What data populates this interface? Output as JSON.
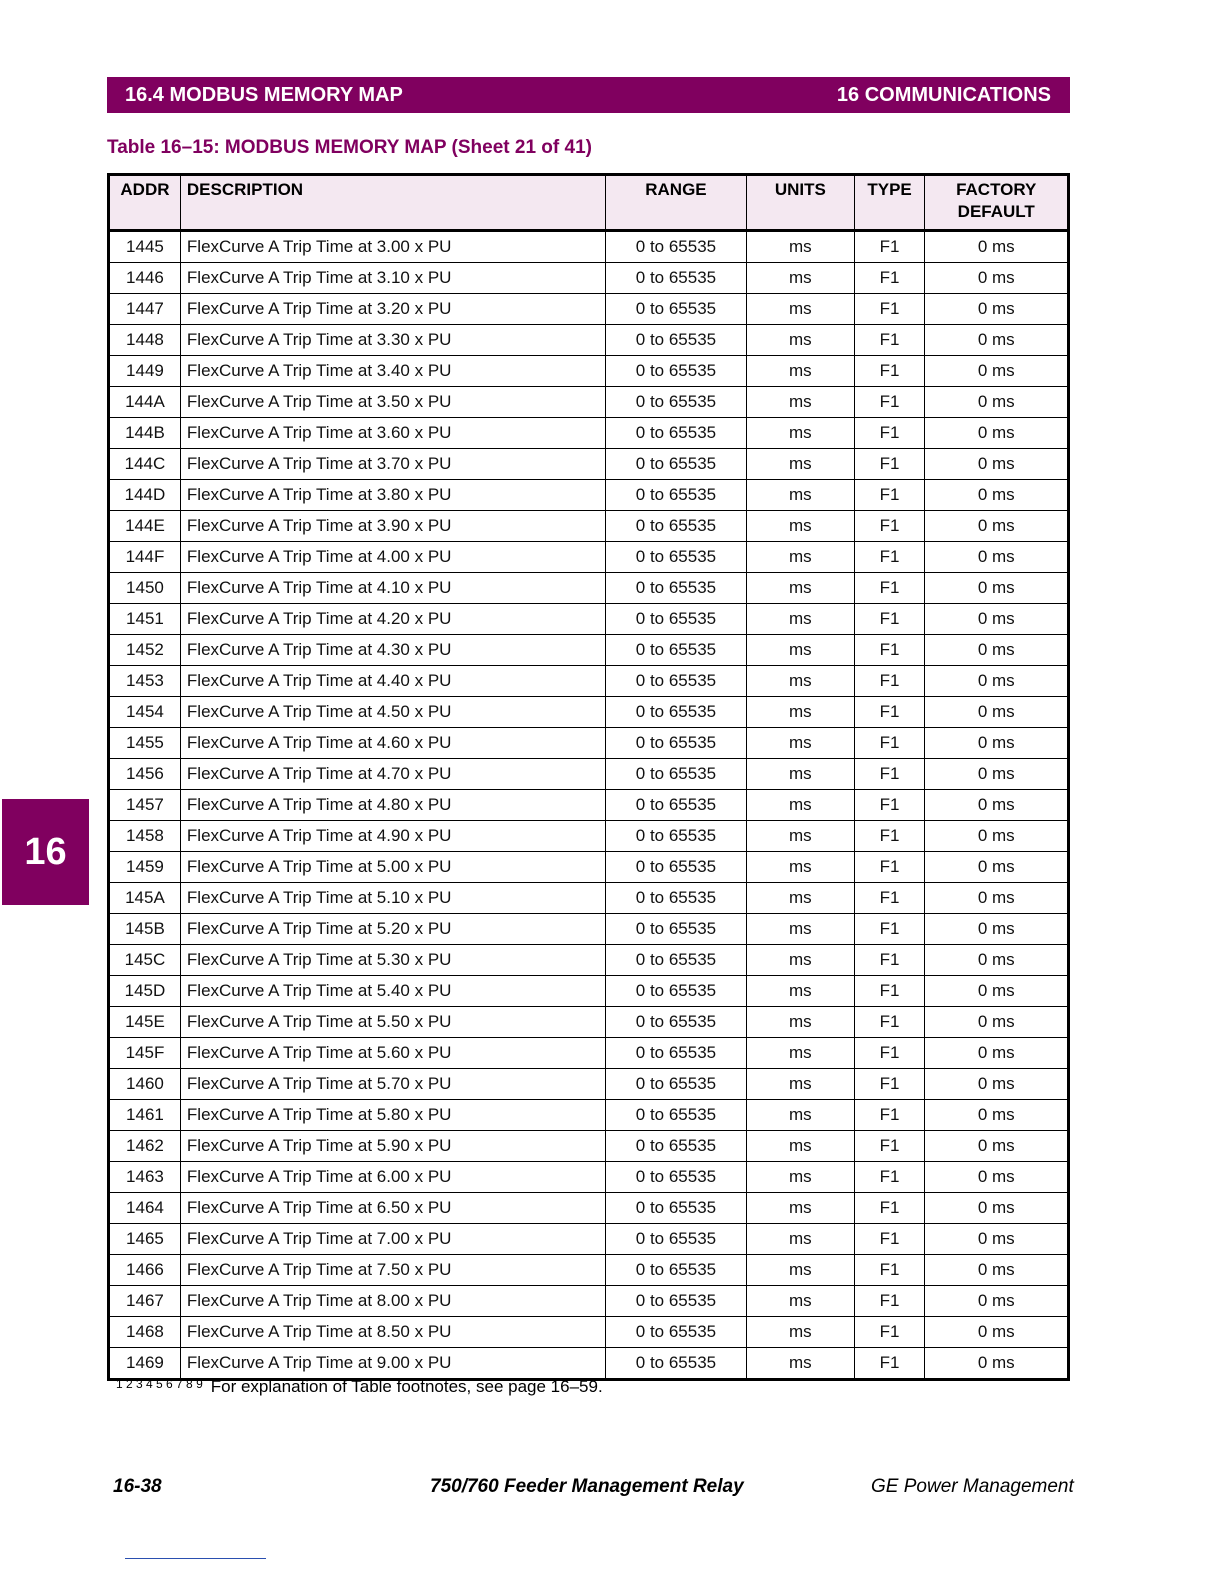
{
  "header": {
    "section": "16.4 MODBUS MEMORY MAP",
    "chapter": "16 COMMUNICATIONS"
  },
  "table_title": "Table 16–15: MODBUS MEMORY MAP (Sheet 21 of 41)",
  "columns": [
    "ADDR",
    "DESCRIPTION",
    "RANGE",
    "UNITS",
    "TYPE",
    "FACTORY DEFAULT"
  ],
  "rows": [
    [
      "1445",
      "FlexCurve A Trip Time at 3.00 x PU",
      "0 to 65535",
      "ms",
      "F1",
      "0 ms"
    ],
    [
      "1446",
      "FlexCurve A Trip Time at 3.10 x PU",
      "0 to 65535",
      "ms",
      "F1",
      "0 ms"
    ],
    [
      "1447",
      "FlexCurve A Trip Time at 3.20 x PU",
      "0 to 65535",
      "ms",
      "F1",
      "0 ms"
    ],
    [
      "1448",
      "FlexCurve A Trip Time at 3.30 x PU",
      "0 to 65535",
      "ms",
      "F1",
      "0 ms"
    ],
    [
      "1449",
      "FlexCurve A Trip Time at 3.40 x PU",
      "0 to 65535",
      "ms",
      "F1",
      "0 ms"
    ],
    [
      "144A",
      "FlexCurve A Trip Time at 3.50 x PU",
      "0 to 65535",
      "ms",
      "F1",
      "0 ms"
    ],
    [
      "144B",
      "FlexCurve A Trip Time at 3.60 x PU",
      "0 to 65535",
      "ms",
      "F1",
      "0 ms"
    ],
    [
      "144C",
      "FlexCurve A Trip Time at 3.70 x PU",
      "0 to 65535",
      "ms",
      "F1",
      "0 ms"
    ],
    [
      "144D",
      "FlexCurve A Trip Time at 3.80 x PU",
      "0 to 65535",
      "ms",
      "F1",
      "0 ms"
    ],
    [
      "144E",
      "FlexCurve A Trip Time at 3.90 x PU",
      "0 to 65535",
      "ms",
      "F1",
      "0 ms"
    ],
    [
      "144F",
      "FlexCurve A Trip Time at 4.00 x PU",
      "0 to 65535",
      "ms",
      "F1",
      "0 ms"
    ],
    [
      "1450",
      "FlexCurve A Trip Time at 4.10 x PU",
      "0 to 65535",
      "ms",
      "F1",
      "0 ms"
    ],
    [
      "1451",
      "FlexCurve A Trip Time at 4.20 x PU",
      "0 to 65535",
      "ms",
      "F1",
      "0 ms"
    ],
    [
      "1452",
      "FlexCurve A Trip Time at 4.30 x PU",
      "0 to 65535",
      "ms",
      "F1",
      "0 ms"
    ],
    [
      "1453",
      "FlexCurve A Trip Time at 4.40 x PU",
      "0 to 65535",
      "ms",
      "F1",
      "0 ms"
    ],
    [
      "1454",
      "FlexCurve A Trip Time at 4.50 x PU",
      "0 to 65535",
      "ms",
      "F1",
      "0 ms"
    ],
    [
      "1455",
      "FlexCurve A Trip Time at 4.60 x PU",
      "0 to 65535",
      "ms",
      "F1",
      "0 ms"
    ],
    [
      "1456",
      "FlexCurve A Trip Time at 4.70 x PU",
      "0 to 65535",
      "ms",
      "F1",
      "0 ms"
    ],
    [
      "1457",
      "FlexCurve A Trip Time at 4.80 x PU",
      "0 to 65535",
      "ms",
      "F1",
      "0 ms"
    ],
    [
      "1458",
      "FlexCurve A Trip Time at 4.90 x PU",
      "0 to 65535",
      "ms",
      "F1",
      "0 ms"
    ],
    [
      "1459",
      "FlexCurve A Trip Time at 5.00 x PU",
      "0 to 65535",
      "ms",
      "F1",
      "0 ms"
    ],
    [
      "145A",
      "FlexCurve A Trip Time at 5.10 x PU",
      "0 to 65535",
      "ms",
      "F1",
      "0 ms"
    ],
    [
      "145B",
      "FlexCurve A Trip Time at 5.20 x PU",
      "0 to 65535",
      "ms",
      "F1",
      "0 ms"
    ],
    [
      "145C",
      "FlexCurve A Trip Time at 5.30 x PU",
      "0 to 65535",
      "ms",
      "F1",
      "0 ms"
    ],
    [
      "145D",
      "FlexCurve A Trip Time at 5.40 x PU",
      "0 to 65535",
      "ms",
      "F1",
      "0 ms"
    ],
    [
      "145E",
      "FlexCurve A Trip Time at 5.50 x PU",
      "0 to 65535",
      "ms",
      "F1",
      "0 ms"
    ],
    [
      "145F",
      "FlexCurve A Trip Time at 5.60 x PU",
      "0 to 65535",
      "ms",
      "F1",
      "0 ms"
    ],
    [
      "1460",
      "FlexCurve A Trip Time at 5.70 x PU",
      "0 to 65535",
      "ms",
      "F1",
      "0 ms"
    ],
    [
      "1461",
      "FlexCurve A Trip Time at 5.80 x PU",
      "0 to 65535",
      "ms",
      "F1",
      "0 ms"
    ],
    [
      "1462",
      "FlexCurve A Trip Time at 5.90 x PU",
      "0 to 65535",
      "ms",
      "F1",
      "0 ms"
    ],
    [
      "1463",
      "FlexCurve A Trip Time at 6.00 x PU",
      "0 to 65535",
      "ms",
      "F1",
      "0 ms"
    ],
    [
      "1464",
      "FlexCurve A Trip Time at 6.50 x PU",
      "0 to 65535",
      "ms",
      "F1",
      "0 ms"
    ],
    [
      "1465",
      "FlexCurve A Trip Time at 7.00 x PU",
      "0 to 65535",
      "ms",
      "F1",
      "0 ms"
    ],
    [
      "1466",
      "FlexCurve A Trip Time at 7.50 x PU",
      "0 to 65535",
      "ms",
      "F1",
      "0 ms"
    ],
    [
      "1467",
      "FlexCurve A Trip Time at 8.00 x PU",
      "0 to 65535",
      "ms",
      "F1",
      "0 ms"
    ],
    [
      "1468",
      "FlexCurve A Trip Time at 8.50 x PU",
      "0 to 65535",
      "ms",
      "F1",
      "0 ms"
    ],
    [
      "1469",
      "FlexCurve A Trip Time at 9.00 x PU",
      "0 to 65535",
      "ms",
      "F1",
      "0 ms"
    ]
  ],
  "footnote": {
    "marks": "1 2 3 4 5 6 7 8 9",
    "text": "For explanation of Table footnotes, see page 16–59."
  },
  "side_tab": "16",
  "footer": {
    "page": "16-38",
    "title": "750/760 Feeder Management Relay",
    "company": "GE Power Management"
  },
  "colors": {
    "brand": "#80005f",
    "header_bg": "#f4e8f1"
  }
}
